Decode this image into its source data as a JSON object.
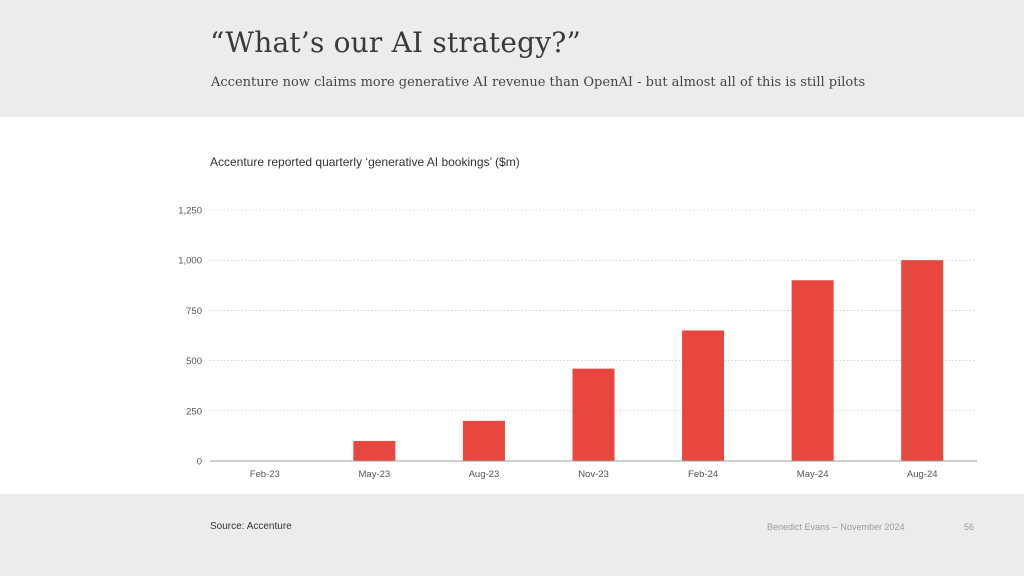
{
  "header": {
    "title": "“What’s our AI strategy?”",
    "subtitle": "Accenture now claims more generative AI revenue than OpenAI - but almost all of this is still pilots"
  },
  "chart_data": {
    "type": "bar",
    "title": "Accenture reported quarterly ‘generative AI bookings’ ($m)",
    "xlabel": "",
    "ylabel": "",
    "categories": [
      "Feb-23",
      "May-23",
      "Aug-23",
      "Nov-23",
      "Feb-24",
      "May-24",
      "Aug-24"
    ],
    "values": [
      0,
      100,
      200,
      460,
      650,
      900,
      1000
    ],
    "ylim": [
      0,
      1250
    ],
    "yticks": [
      0,
      250,
      500,
      750,
      1000,
      1250
    ],
    "ytick_labels": [
      "0",
      "250",
      "500",
      "750",
      "1,000",
      "1,250"
    ],
    "grid": true,
    "bar_color": "#e8473f"
  },
  "footer": {
    "source": "Source: Accenture",
    "credit": "Benedict Evans  --  November 2024",
    "page": "56"
  }
}
